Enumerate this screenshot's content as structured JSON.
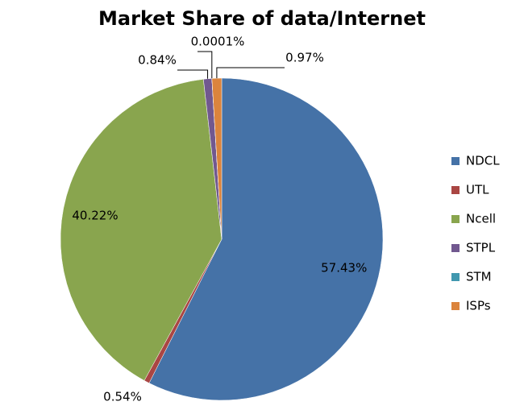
{
  "chart_data": {
    "type": "pie",
    "title": "Market Share of data/Internet",
    "categories": [
      "NDCL",
      "UTL",
      "Ncell",
      "STPL",
      "STM",
      "ISPs"
    ],
    "values": [
      57.43,
      0.54,
      40.22,
      0.84,
      0.0001,
      0.97
    ],
    "value_labels": [
      "57.43%",
      "0.54%",
      "40.22%",
      "0.84%",
      "0.0001%",
      "0.97%"
    ],
    "colors": [
      "#4572a7",
      "#aa4643",
      "#89a54e",
      "#71588f",
      "#4198af",
      "#db843d"
    ],
    "legend": "right"
  }
}
